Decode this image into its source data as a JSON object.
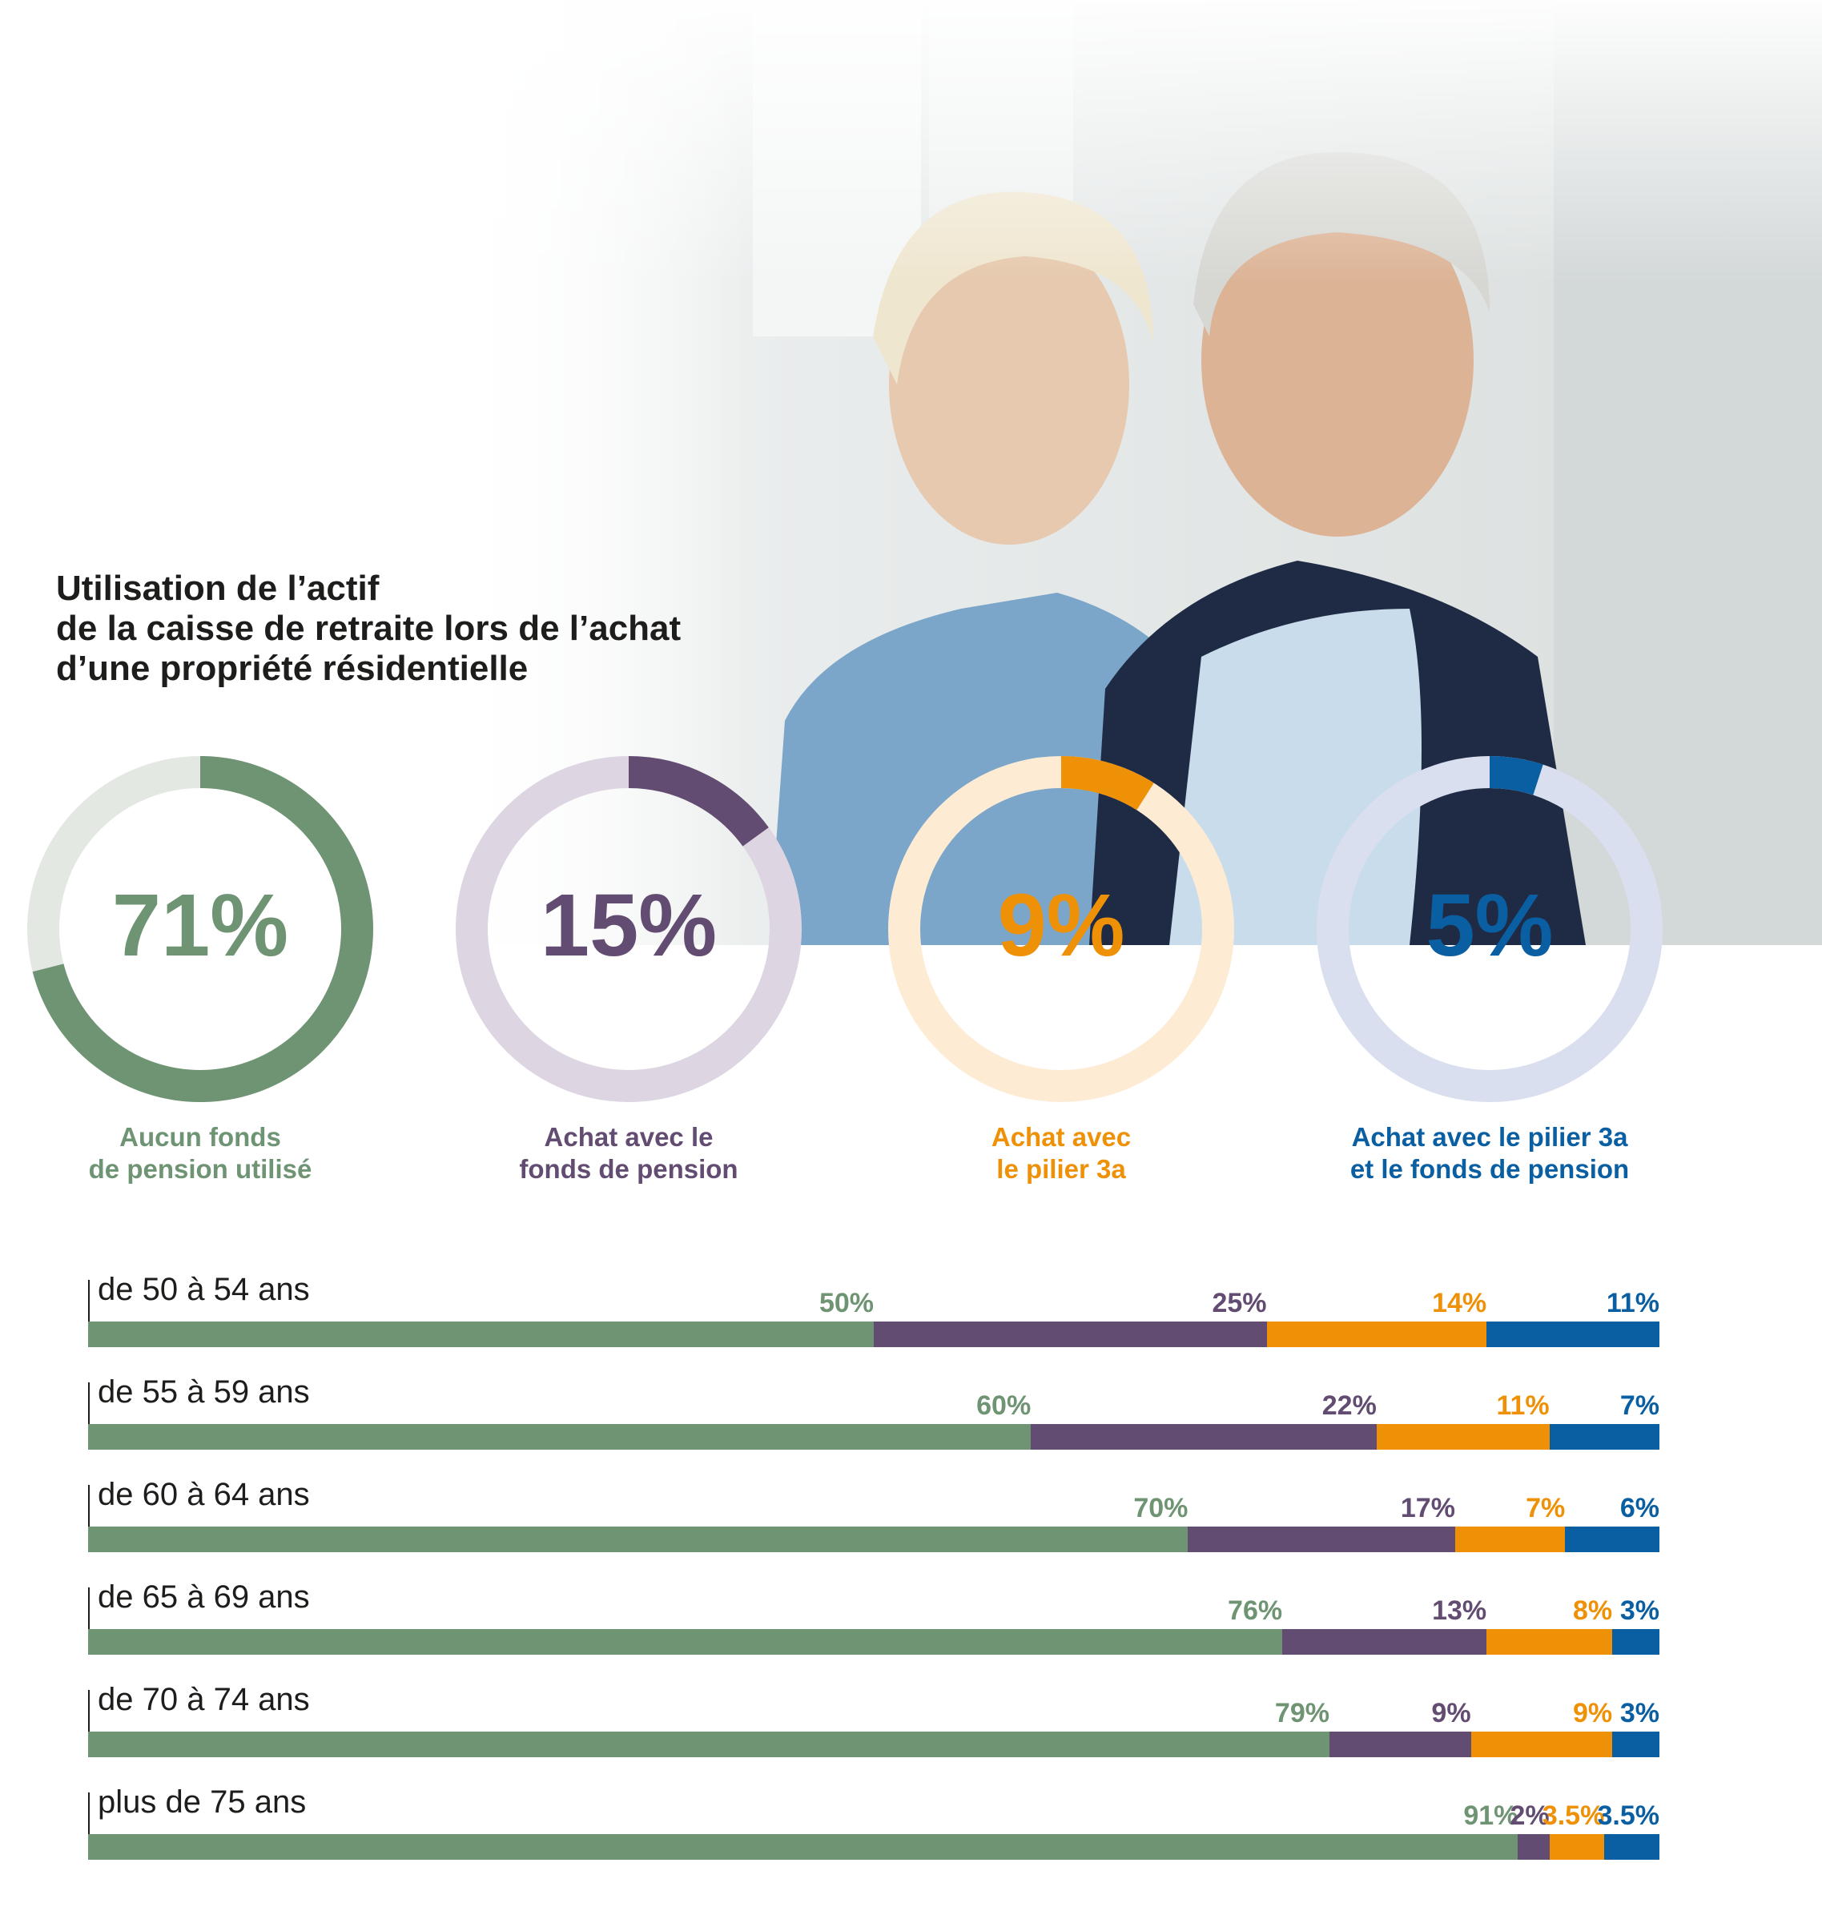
{
  "photo": {
    "description_icon": "couple-photo"
  },
  "title": {
    "line1": "Utilisation de l’actif",
    "line2": "de la caisse de retraite lors de l’achat",
    "line3": "d’une propriété résidentielle"
  },
  "colors": {
    "green": "#6f9473",
    "purple": "#634c72",
    "orange": "#ef9107",
    "blue": "#0a5fa2",
    "green_track": "#e4e8e3",
    "purple_track": "#ddd6e2",
    "orange_track": "#fdebd4",
    "blue_track": "#d9dfee"
  },
  "donuts": [
    {
      "pct_label": "71%",
      "value": 71,
      "label_line1": "Aucun fonds",
      "label_line2": "de pension utilisé",
      "color": "#6f9473",
      "track": "#e4e8e3"
    },
    {
      "pct_label": "15%",
      "value": 15,
      "label_line1": "Achat avec le",
      "label_line2": "fonds de pension",
      "color": "#634c72",
      "track": "#ddd6e2"
    },
    {
      "pct_label": "9%",
      "value": 9,
      "label_line1": "Achat avec",
      "label_line2": "le pilier 3a",
      "color": "#ef9107",
      "track": "#fdebd4"
    },
    {
      "pct_label": "5%",
      "value": 5,
      "label_line1": "Achat avec le pilier 3a",
      "label_line2": "et le fonds de pension",
      "color": "#0a5fa2",
      "track": "#d9dfee"
    }
  ],
  "chart_data": {
    "type": "bar",
    "stacked": true,
    "orientation": "horizontal",
    "categories": [
      "de 50 à 54 ans",
      "de 55 à 59 ans",
      "de 60 à 64 ans",
      "de 65 à 69 ans",
      "de 70 à 74 ans",
      "plus de 75 ans"
    ],
    "series": [
      {
        "name": "Aucun fonds de pension utilisé",
        "color": "#6f9473",
        "values": [
          50,
          60,
          70,
          76,
          79,
          91
        ],
        "labels": [
          "50%",
          "60%",
          "70%",
          "76%",
          "79%",
          "91%"
        ]
      },
      {
        "name": "Achat avec le fonds de pension",
        "color": "#634c72",
        "values": [
          25,
          22,
          17,
          13,
          9,
          2
        ],
        "labels": [
          "25%",
          "22%",
          "17%",
          "13%",
          "9%",
          "2%"
        ]
      },
      {
        "name": "Achat avec le pilier 3a",
        "color": "#ef9107",
        "values": [
          14,
          11,
          7,
          8,
          9,
          3.5
        ],
        "labels": [
          "14%",
          "11%",
          "7%",
          "8%",
          "9%",
          "3.5%"
        ]
      },
      {
        "name": "Achat avec le pilier 3a et le fonds de pension",
        "color": "#0a5fa2",
        "values": [
          11,
          7,
          6,
          3,
          3,
          3.5
        ],
        "labels": [
          "11%",
          "7%",
          "6%",
          "3%",
          "3%",
          "3.5%"
        ]
      }
    ],
    "xlim": [
      0,
      100
    ]
  }
}
